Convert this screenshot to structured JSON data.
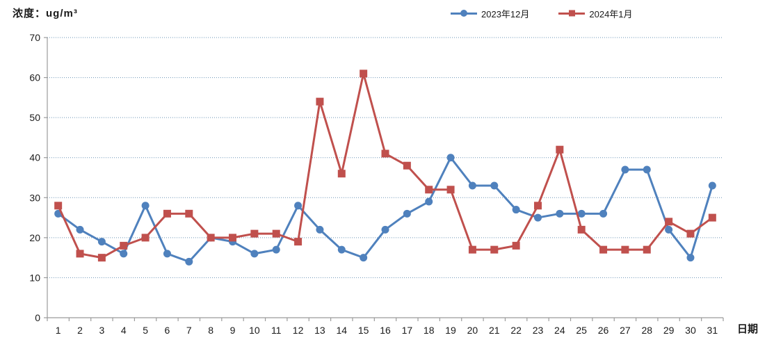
{
  "chart_data": {
    "type": "line",
    "title": "",
    "ylabel": "浓度：ug/m³",
    "xlabel": "日期",
    "ylim": [
      0,
      70
    ],
    "ytick_step": 10,
    "grid": true,
    "grid_style": "dotted",
    "legend_position": "top",
    "categories": [
      1,
      2,
      3,
      4,
      5,
      6,
      7,
      8,
      9,
      10,
      11,
      12,
      13,
      14,
      15,
      16,
      17,
      18,
      19,
      20,
      21,
      22,
      23,
      24,
      25,
      26,
      27,
      28,
      29,
      30,
      31
    ],
    "series": [
      {
        "name": "2023年12月",
        "color": "#4F81BD",
        "marker": "circle",
        "values": [
          26,
          22,
          19,
          16,
          28,
          16,
          14,
          20,
          19,
          16,
          17,
          28,
          22,
          17,
          15,
          22,
          26,
          29,
          40,
          33,
          33,
          27,
          25,
          26,
          26,
          26,
          37,
          37,
          22,
          15,
          33
        ]
      },
      {
        "name": "2024年1月",
        "color": "#C0504D",
        "marker": "square",
        "values": [
          28,
          16,
          15,
          18,
          20,
          26,
          26,
          20,
          20,
          21,
          21,
          19,
          54,
          36,
          61,
          41,
          38,
          32,
          32,
          17,
          17,
          18,
          28,
          42,
          22,
          17,
          17,
          17,
          24,
          21,
          25
        ]
      }
    ],
    "colors": {
      "gridline": "#6A93B5",
      "axis": "#9B9B9B",
      "tick_label": "#1a1a1a"
    }
  }
}
